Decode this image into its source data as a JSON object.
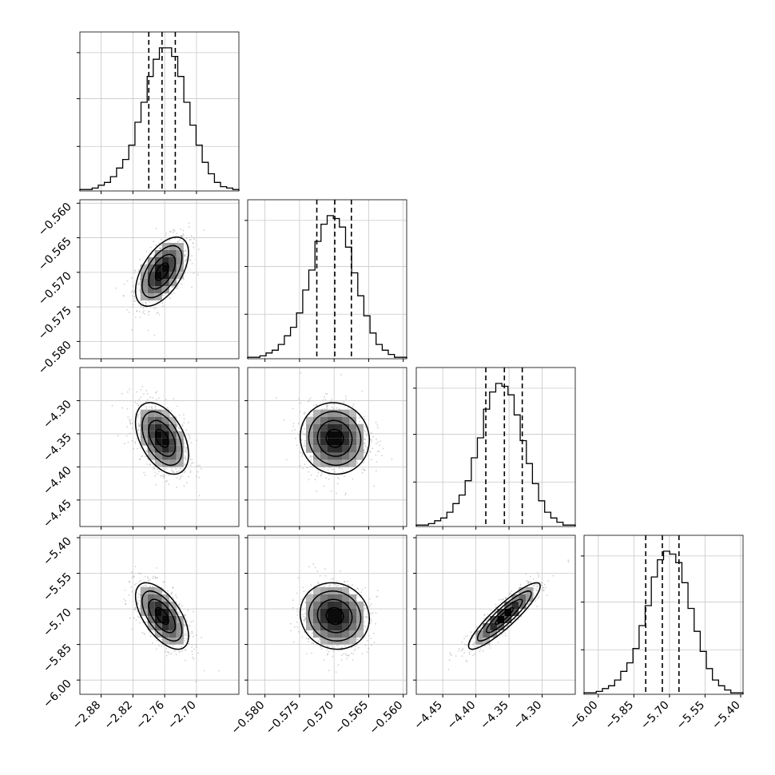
{
  "chart_data": {
    "type": "corner",
    "parameters": [
      {
        "index": 0,
        "quantiles": [
          -2.79,
          -2.765,
          -2.74
        ],
        "mean": -2.765,
        "std": 0.025,
        "range": [
          -2.92,
          -2.62
        ],
        "ticks": [
          -2.88,
          -2.82,
          -2.76,
          -2.7
        ],
        "tick_labels": [
          "−2.88",
          "−2.82",
          "−2.76",
          "−2.70"
        ]
      },
      {
        "index": 1,
        "quantiles": [
          -0.5725,
          -0.5699,
          -0.5675
        ],
        "mean": -0.5699,
        "std": 0.0025,
        "range": [
          -0.5825,
          -0.5595
        ],
        "ticks": [
          -0.58,
          -0.575,
          -0.57,
          -0.565,
          -0.56
        ],
        "tick_labels": [
          "−0.580",
          "−0.575",
          "−0.570",
          "−0.565",
          "−0.560"
        ]
      },
      {
        "index": 2,
        "quantiles": [
          -4.385,
          -4.357,
          -4.33
        ],
        "mean": -4.357,
        "std": 0.027,
        "range": [
          -4.49,
          -4.25
        ],
        "ticks": [
          -4.45,
          -4.4,
          -4.35,
          -4.3
        ],
        "tick_labels": [
          "−4.45",
          "−4.40",
          "−4.35",
          "−4.30"
        ]
      },
      {
        "index": 3,
        "quantiles": [
          -5.8,
          -5.73,
          -5.66
        ],
        "mean": -5.73,
        "std": 0.07,
        "range": [
          -6.06,
          -5.39
        ],
        "ticks": [
          -6.0,
          -5.85,
          -5.7,
          -5.55,
          -5.4
        ],
        "tick_labels": [
          "−6.00",
          "−5.85",
          "−5.70",
          "−5.55",
          "−5.40"
        ]
      }
    ],
    "histograms": [
      {
        "param": 0,
        "counts": [
          1,
          1,
          2,
          4,
          6,
          10,
          16,
          22,
          32,
          48,
          62,
          80,
          92,
          100,
          100,
          94,
          80,
          62,
          46,
          32,
          20,
          12,
          6,
          3,
          2,
          1
        ]
      },
      {
        "param": 1,
        "counts": [
          1,
          1,
          2,
          4,
          6,
          10,
          16,
          22,
          32,
          48,
          62,
          82,
          94,
          100,
          98,
          92,
          78,
          60,
          44,
          30,
          18,
          10,
          6,
          3,
          1,
          1
        ]
      },
      {
        "param": 2,
        "counts": [
          1,
          1,
          2,
          4,
          6,
          10,
          16,
          22,
          32,
          48,
          62,
          82,
          94,
          100,
          98,
          92,
          78,
          60,
          44,
          30,
          18,
          10,
          6,
          3,
          1,
          1
        ]
      },
      {
        "param": 3,
        "counts": [
          1,
          1,
          2,
          4,
          6,
          10,
          16,
          22,
          32,
          48,
          62,
          82,
          94,
          100,
          98,
          92,
          78,
          60,
          44,
          30,
          18,
          10,
          6,
          3,
          1,
          1
        ]
      }
    ],
    "correlations": [
      {
        "x": 0,
        "y": 1,
        "rho": 0.55
      },
      {
        "x": 0,
        "y": 2,
        "rho": -0.45
      },
      {
        "x": 1,
        "y": 2,
        "rho": -0.05
      },
      {
        "x": 0,
        "y": 3,
        "rho": -0.6
      },
      {
        "x": 1,
        "y": 3,
        "rho": -0.08
      },
      {
        "x": 2,
        "y": 3,
        "rho": 0.9
      }
    ],
    "contour_levels": [
      "0.5-sigma",
      "1-sigma",
      "1.5-sigma",
      "2-sigma"
    ],
    "grid": true,
    "colors": {
      "contour": "#000000",
      "points": "#999999",
      "grid": "#c8c8c8"
    }
  }
}
